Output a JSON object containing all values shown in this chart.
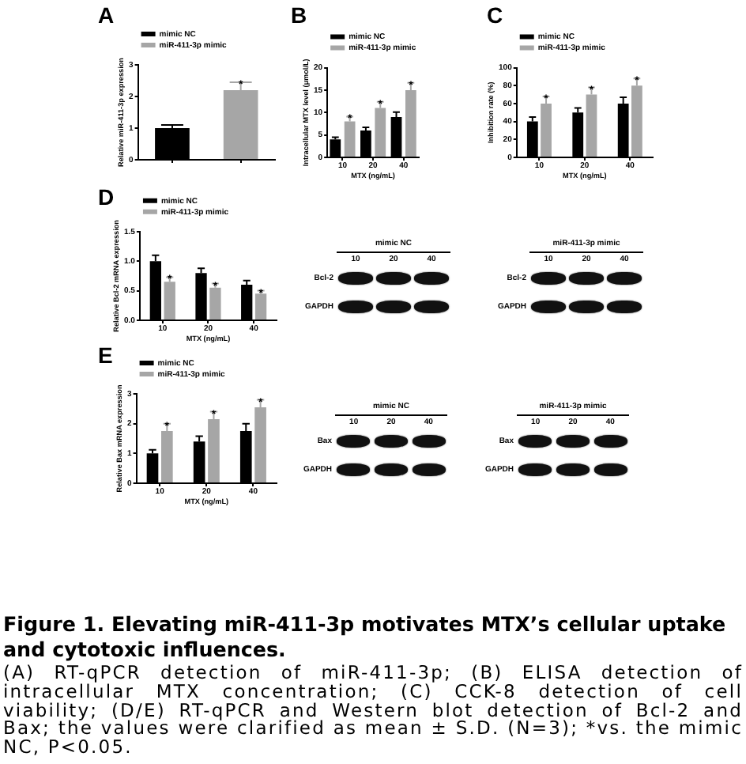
{
  "chart_data": [
    {
      "type": "bar",
      "title": "A",
      "ylabel": "Relative miR-411-3p expression",
      "categories": [
        null,
        null
      ],
      "series": [
        {
          "name": "mimic NC",
          "color": "#000000",
          "values": [
            1.0,
            null
          ],
          "errors": [
            [
              1.0,
              1.1
            ],
            null
          ]
        },
        {
          "name": "miR-411-3p mimic",
          "color": "#a6a6a6",
          "values": [
            null,
            2.2
          ],
          "errors": [
            null,
            [
              2.2,
              2.45
            ]
          ],
          "value_labels": [
            null,
            "*"
          ]
        }
      ],
      "ylim": [
        0,
        3
      ],
      "yticks": [
        0,
        1,
        2,
        3
      ],
      "legend": "top left"
    },
    {
      "type": "bar",
      "title": "B",
      "xlabel": "MTX (ng/mL)",
      "ylabel": "Intracellular MTX level (μmol/L)",
      "categories": [
        "10",
        "20",
        "40"
      ],
      "series": [
        {
          "name": "mimic NC",
          "color": "#000000",
          "values": [
            4,
            6,
            9
          ],
          "errors": [
            [
              4,
              4.5
            ],
            [
              6,
              6.7
            ],
            [
              9,
              10.1
            ]
          ]
        },
        {
          "name": "miR-411-3p mimic",
          "color": "#a6a6a6",
          "values": [
            8,
            11,
            15
          ],
          "errors": [
            [
              8,
              9.1
            ],
            [
              11,
              12.4
            ],
            [
              15,
              16.6
            ]
          ],
          "value_labels": [
            "*",
            "*",
            "*"
          ]
        }
      ],
      "ylim": [
        0,
        20
      ],
      "yticks": [
        0,
        5,
        10,
        15,
        20
      ],
      "legend": "top left"
    },
    {
      "type": "bar",
      "title": "C",
      "xlabel": "MTX (ng/mL)",
      "ylabel": "Inhibition rate (%)",
      "categories": [
        "10",
        "20",
        "40"
      ],
      "series": [
        {
          "name": "mimic NC",
          "color": "#000000",
          "values": [
            40,
            50,
            60
          ],
          "errors": [
            [
              40,
              45
            ],
            [
              50,
              55
            ],
            [
              60,
              67
            ]
          ]
        },
        {
          "name": "miR-411-3p mimic",
          "color": "#a6a6a6",
          "values": [
            60,
            70,
            80
          ],
          "errors": [
            [
              60,
              68
            ],
            [
              70,
              78
            ],
            [
              80,
              88
            ]
          ],
          "value_labels": [
            "*",
            "*",
            "*"
          ]
        }
      ],
      "ylim": [
        0,
        100
      ],
      "yticks": [
        0,
        20,
        40,
        60,
        80,
        100
      ],
      "legend": "top left"
    },
    {
      "type": "bar",
      "title": "D",
      "xlabel": "MTX (ng/mL)",
      "ylabel": "Relative Bcl-2 mRNA expression",
      "categories": [
        "10",
        "20",
        "40"
      ],
      "series": [
        {
          "name": "mimic NC",
          "color": "#000000",
          "values": [
            1.0,
            0.8,
            0.6
          ],
          "errors": [
            [
              1.0,
              1.1
            ],
            [
              0.8,
              0.88
            ],
            [
              0.6,
              0.67
            ]
          ]
        },
        {
          "name": "miR-411-3p mimic",
          "color": "#a6a6a6",
          "values": [
            0.65,
            0.55,
            0.45
          ],
          "errors": [
            [
              0.65,
              0.73
            ],
            [
              0.55,
              0.62
            ],
            [
              0.45,
              0.5
            ]
          ],
          "value_labels": [
            "*",
            "*",
            "*"
          ]
        }
      ],
      "ylim": [
        0,
        1.5
      ],
      "yticks": [
        {
          "value": 0,
          "label": "0.0"
        },
        {
          "value": 0.5,
          "label": "0.5"
        },
        {
          "value": 1,
          "label": "1.0"
        },
        {
          "value": 1.5,
          "label": "1.5"
        }
      ],
      "legend": "top left"
    },
    {
      "type": "other",
      "title": "mimic NC",
      "categories": [
        "10",
        "20",
        "40"
      ],
      "y_categories": [
        "Bcl-2",
        "GAPDH"
      ]
    },
    {
      "type": "other",
      "title": "miR-411-3p mimic",
      "categories": [
        "10",
        "20",
        "40"
      ],
      "y_categories": [
        "Bcl-2",
        "GAPDH"
      ]
    },
    {
      "type": "bar",
      "title": "E",
      "xlabel": "MTX (ng/mL)",
      "ylabel": "Relative Bax mRNA expression",
      "categories": [
        "10",
        "20",
        "40"
      ],
      "series": [
        {
          "name": "mimic NC",
          "color": "#000000",
          "values": [
            1.0,
            1.4,
            1.75
          ],
          "errors": [
            [
              1.0,
              1.12
            ],
            [
              1.4,
              1.58
            ],
            [
              1.75,
              2.0
            ]
          ]
        },
        {
          "name": "miR-411-3p mimic",
          "color": "#a6a6a6",
          "values": [
            1.75,
            2.15,
            2.55
          ],
          "errors": [
            [
              1.75,
              2.0
            ],
            [
              2.15,
              2.4
            ],
            [
              2.55,
              2.8
            ]
          ],
          "value_labels": [
            "*",
            "*",
            "*"
          ]
        }
      ],
      "ylim": [
        0,
        3
      ],
      "yticks": [
        0,
        1,
        2,
        3
      ],
      "legend": "top left"
    },
    {
      "type": "other",
      "title": "mimic NC",
      "categories": [
        "10",
        "20",
        "40"
      ],
      "y_categories": [
        "Bax",
        "GAPDH"
      ]
    },
    {
      "type": "other",
      "title": "miR-411-3p mimic",
      "categories": [
        "10",
        "20",
        "40"
      ],
      "y_categories": [
        "Bax",
        "GAPDH"
      ]
    },
    {
      "type": "other",
      "title": "Figure 1. Elevating miR-411-3p motivates MTX’s cellular uptake and cytotoxic influences.",
      "annotations": [
        "(A) RT-qPCR detection of miR-411-3p; (B) ELISA detection of intracellular MTX concentration; (C) CCK-8 detection of cell viability; (D/E) RT-qPCR and Western blot detection of Bcl-2 and Bax; the values were clarified as mean ± S.D. (N=3); *vs. the mimic NC, P<0.05."
      ]
    }
  ]
}
